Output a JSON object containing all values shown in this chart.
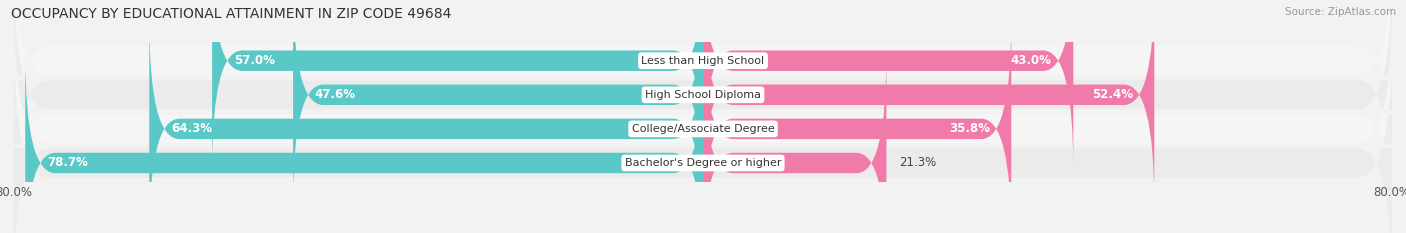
{
  "title": "OCCUPANCY BY EDUCATIONAL ATTAINMENT IN ZIP CODE 49684",
  "source": "Source: ZipAtlas.com",
  "categories": [
    "Less than High School",
    "High School Diploma",
    "College/Associate Degree",
    "Bachelor's Degree or higher"
  ],
  "owner_values": [
    57.0,
    47.6,
    64.3,
    78.7
  ],
  "renter_values": [
    43.0,
    52.4,
    35.8,
    21.3
  ],
  "owner_color": "#5BC8C8",
  "renter_color": "#F07AAA",
  "row_colors": [
    "#f5f5f5",
    "#ebebeb",
    "#f5f5f5",
    "#ebebeb"
  ],
  "background_color": "#f2f2f2",
  "xlim_left": -80.0,
  "xlim_right": 80.0,
  "bar_height": 0.6,
  "title_fontsize": 10,
  "label_fontsize": 8.5,
  "tick_fontsize": 8.5,
  "legend_fontsize": 8.5,
  "owner_label_threshold": 20,
  "renter_label_threshold": 25
}
